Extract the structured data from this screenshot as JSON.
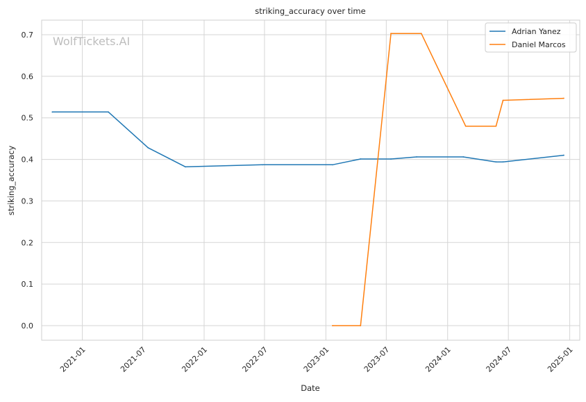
{
  "chart_data": {
    "type": "line",
    "title": "striking_accuracy over time",
    "xlabel": "Date",
    "ylabel": "striking_accuracy",
    "watermark": "WolfTickets.AI",
    "x_axis_type": "date",
    "xlim": [
      "2020-09-01",
      "2025-01-31"
    ],
    "ylim": [
      -0.035,
      0.735
    ],
    "x_ticks": [
      "2021-01",
      "2021-07",
      "2022-01",
      "2022-07",
      "2023-01",
      "2023-07",
      "2024-01",
      "2024-07",
      "2025-01"
    ],
    "y_ticks": [
      0.0,
      0.1,
      0.2,
      0.3,
      0.4,
      0.5,
      0.6,
      0.7
    ],
    "y_tick_labels": [
      "0.0",
      "0.1",
      "0.2",
      "0.3",
      "0.4",
      "0.5",
      "0.6",
      "0.7"
    ],
    "grid": true,
    "legend_position": "top-right",
    "series": [
      {
        "name": "Adrian Yanez",
        "color": "#1f77b4",
        "points": [
          {
            "x": "2020-10-03",
            "y": 0.514
          },
          {
            "x": "2021-03-20",
            "y": 0.514
          },
          {
            "x": "2021-07-17",
            "y": 0.428
          },
          {
            "x": "2021-11-06",
            "y": 0.382
          },
          {
            "x": "2022-06-25",
            "y": 0.387
          },
          {
            "x": "2023-01-21",
            "y": 0.387
          },
          {
            "x": "2023-04-15",
            "y": 0.401
          },
          {
            "x": "2023-07-15",
            "y": 0.401
          },
          {
            "x": "2023-09-30",
            "y": 0.406
          },
          {
            "x": "2024-02-17",
            "y": 0.406
          },
          {
            "x": "2024-05-25",
            "y": 0.394
          },
          {
            "x": "2024-06-15",
            "y": 0.394
          },
          {
            "x": "2024-12-14",
            "y": 0.41
          }
        ]
      },
      {
        "name": "Daniel Marcos",
        "color": "#ff7f0e",
        "points": [
          {
            "x": "2023-01-21",
            "y": 0.0
          },
          {
            "x": "2023-04-15",
            "y": 0.0
          },
          {
            "x": "2023-07-15",
            "y": 0.703
          },
          {
            "x": "2023-10-14",
            "y": 0.703
          },
          {
            "x": "2024-02-24",
            "y": 0.48
          },
          {
            "x": "2024-05-25",
            "y": 0.48
          },
          {
            "x": "2024-06-15",
            "y": 0.542
          },
          {
            "x": "2024-12-14",
            "y": 0.547
          }
        ]
      }
    ]
  }
}
